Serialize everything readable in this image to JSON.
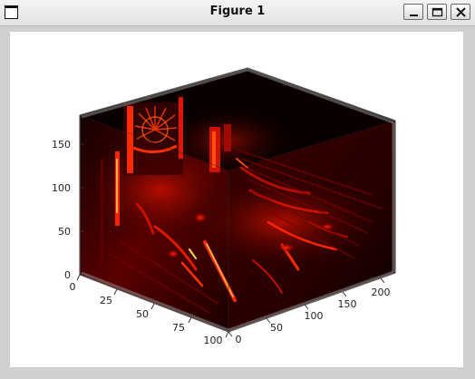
{
  "window": {
    "title": "Figure 1",
    "buttons": {
      "minimize": "minimize-icon",
      "maximize": "maximize-icon",
      "close": "close-icon"
    }
  },
  "chart_data": {
    "type": "volume-3d",
    "colormap": "hot",
    "x_ticks": [
      "0",
      "25",
      "50",
      "75",
      "100"
    ],
    "y_ticks": [
      "0",
      "50",
      "100",
      "150",
      "200"
    ],
    "z_ticks": [
      "0",
      "50",
      "100",
      "150"
    ],
    "xlim": [
      0,
      100
    ],
    "ylim": [
      0,
      220
    ],
    "zlim": [
      0,
      180
    ],
    "colors": {
      "background": "#000000",
      "mid": "#8a0000",
      "bright": "#ff2a00",
      "hot": "#ffd060"
    }
  }
}
